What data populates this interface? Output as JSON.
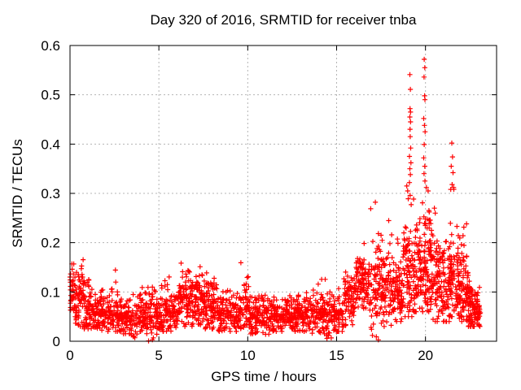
{
  "page": {
    "background": "#ffffff"
  },
  "chart_data": {
    "type": "scatter",
    "title": "Day 320 of 2016, SRMTID for receiver tnba",
    "xlabel": "GPS time / hours",
    "ylabel": "SRMTID / TECUs",
    "xlim": [
      0,
      24
    ],
    "ylim": [
      0,
      0.6
    ],
    "xticks": [
      0,
      5,
      10,
      15,
      20
    ],
    "yticks": [
      0,
      0.1,
      0.2,
      0.3,
      0.4,
      0.5,
      0.6
    ],
    "grid": true,
    "legend": "none",
    "marker": "+",
    "marker_color": "#ff0000",
    "grid_color": "#b4b4b4",
    "axis_color": "#000000",
    "text_color": "#000000",
    "seed": 11,
    "band_fields": [
      "x_start",
      "x_end",
      "n_points",
      "y_center",
      "y_spread",
      "y_min",
      "y_max"
    ],
    "point_bands": [
      [
        0.0,
        0.3,
        40,
        0.1,
        0.03,
        0.05,
        0.165
      ],
      [
        0.3,
        0.8,
        65,
        0.095,
        0.032,
        0.03,
        0.175
      ],
      [
        0.8,
        1.3,
        60,
        0.068,
        0.026,
        0.025,
        0.13
      ],
      [
        1.3,
        2.3,
        115,
        0.055,
        0.02,
        0.02,
        0.105
      ],
      [
        2.3,
        2.7,
        45,
        0.058,
        0.026,
        0.02,
        0.155
      ],
      [
        2.7,
        3.4,
        80,
        0.047,
        0.018,
        0.015,
        0.09
      ],
      [
        3.4,
        3.9,
        45,
        0.045,
        0.022,
        0.0,
        0.095
      ],
      [
        3.9,
        4.3,
        48,
        0.05,
        0.02,
        0.02,
        0.11
      ],
      [
        4.3,
        4.7,
        45,
        0.055,
        0.028,
        0.0,
        0.12
      ],
      [
        4.7,
        5.2,
        55,
        0.055,
        0.024,
        0.005,
        0.125
      ],
      [
        5.2,
        5.6,
        42,
        0.06,
        0.026,
        0.02,
        0.135
      ],
      [
        5.6,
        6.1,
        55,
        0.055,
        0.02,
        0.02,
        0.1
      ],
      [
        6.1,
        6.6,
        62,
        0.088,
        0.032,
        0.03,
        0.16
      ],
      [
        6.6,
        7.1,
        62,
        0.08,
        0.03,
        0.03,
        0.145
      ],
      [
        7.1,
        7.6,
        62,
        0.085,
        0.03,
        0.03,
        0.155
      ],
      [
        7.6,
        8.3,
        80,
        0.068,
        0.026,
        0.025,
        0.15
      ],
      [
        8.3,
        9.6,
        140,
        0.055,
        0.02,
        0.02,
        0.105
      ],
      [
        9.6,
        10.1,
        52,
        0.068,
        0.03,
        0.025,
        0.17
      ],
      [
        10.1,
        11.0,
        100,
        0.05,
        0.019,
        0.015,
        0.095
      ],
      [
        11.0,
        11.3,
        32,
        0.045,
        0.022,
        0.0,
        0.09
      ],
      [
        11.3,
        12.6,
        140,
        0.05,
        0.018,
        0.02,
        0.095
      ],
      [
        12.6,
        13.6,
        105,
        0.052,
        0.019,
        0.02,
        0.1
      ],
      [
        13.6,
        14.4,
        88,
        0.055,
        0.021,
        0.015,
        0.13
      ],
      [
        14.4,
        14.7,
        32,
        0.05,
        0.025,
        0.0,
        0.1
      ],
      [
        14.7,
        15.4,
        72,
        0.058,
        0.022,
        0.02,
        0.11
      ],
      [
        15.4,
        16.0,
        72,
        0.085,
        0.028,
        0.03,
        0.16
      ],
      [
        16.0,
        16.9,
        112,
        0.115,
        0.03,
        0.05,
        0.2
      ],
      [
        16.9,
        17.4,
        58,
        0.1,
        0.05,
        0.0,
        0.285
      ],
      [
        17.4,
        18.1,
        92,
        0.11,
        0.045,
        0.03,
        0.27
      ],
      [
        18.1,
        18.7,
        82,
        0.1,
        0.035,
        0.04,
        0.21
      ],
      [
        18.7,
        19.35,
        92,
        0.13,
        0.055,
        0.05,
        0.31
      ],
      [
        19.35,
        19.8,
        72,
        0.14,
        0.055,
        0.06,
        0.3
      ],
      [
        19.8,
        20.3,
        82,
        0.15,
        0.058,
        0.06,
        0.3
      ],
      [
        20.3,
        20.9,
        86,
        0.12,
        0.045,
        0.04,
        0.25
      ],
      [
        20.9,
        21.35,
        62,
        0.1,
        0.04,
        0.04,
        0.21
      ],
      [
        21.35,
        21.85,
        76,
        0.13,
        0.058,
        0.05,
        0.32
      ],
      [
        21.85,
        22.4,
        86,
        0.11,
        0.045,
        0.04,
        0.25
      ],
      [
        22.4,
        22.8,
        70,
        0.075,
        0.028,
        0.03,
        0.15
      ],
      [
        22.8,
        23.1,
        40,
        0.06,
        0.02,
        0.03,
        0.11
      ]
    ],
    "outlier_points": [
      [
        19.12,
        0.541
      ],
      [
        19.15,
        0.511
      ],
      [
        19.13,
        0.472
      ],
      [
        19.16,
        0.465
      ],
      [
        19.12,
        0.455
      ],
      [
        19.16,
        0.445
      ],
      [
        19.13,
        0.43
      ],
      [
        19.14,
        0.415
      ],
      [
        19.17,
        0.392
      ],
      [
        19.1,
        0.375
      ],
      [
        19.18,
        0.362
      ],
      [
        19.12,
        0.35
      ],
      [
        19.15,
        0.338
      ],
      [
        19.1,
        0.322
      ],
      [
        19.93,
        0.572
      ],
      [
        19.96,
        0.555
      ],
      [
        19.92,
        0.536
      ],
      [
        19.95,
        0.498
      ],
      [
        19.97,
        0.49
      ],
      [
        19.9,
        0.452
      ],
      [
        19.94,
        0.438
      ],
      [
        19.98,
        0.425
      ],
      [
        19.93,
        0.399
      ],
      [
        19.9,
        0.372
      ],
      [
        19.96,
        0.355
      ],
      [
        19.92,
        0.34
      ],
      [
        19.97,
        0.325
      ],
      [
        21.48,
        0.402
      ],
      [
        21.52,
        0.374
      ],
      [
        21.45,
        0.355
      ],
      [
        21.55,
        0.342
      ],
      [
        21.5,
        0.318
      ],
      [
        21.42,
        0.308
      ],
      [
        21.58,
        0.312
      ],
      [
        18.95,
        0.315
      ],
      [
        19.0,
        0.305
      ],
      [
        20.05,
        0.312
      ],
      [
        20.15,
        0.305
      ],
      [
        17.18,
        0.282
      ],
      [
        20.5,
        0.27
      ],
      [
        20.55,
        0.26
      ],
      [
        23.0,
        0.033
      ],
      [
        22.9,
        0.046
      ]
    ]
  }
}
